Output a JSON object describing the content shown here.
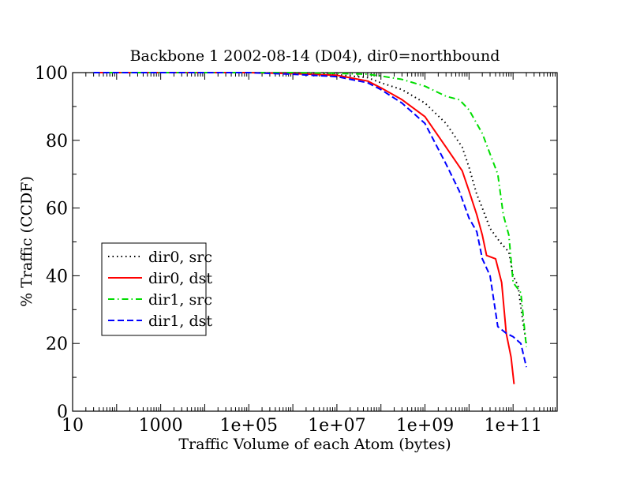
{
  "chart_data": {
    "type": "line",
    "title": "Backbone 1 2002-08-14 (D04), dir0=northbound",
    "xlabel": "Traffic Volume of each Atom (bytes)",
    "ylabel": "% Traffic (CCDF)",
    "x_scale": "log",
    "xlim": [
      10,
      1000000000000
    ],
    "ylim": [
      0,
      100
    ],
    "x_ticks": [
      {
        "value": 10,
        "label": "10"
      },
      {
        "value": 1000,
        "label": "1000"
      },
      {
        "value": 100000,
        "label": "1e+05"
      },
      {
        "value": 10000000,
        "label": "1e+07"
      },
      {
        "value": 1000000000,
        "label": "1e+09"
      },
      {
        "value": 100000000000,
        "label": "1e+11"
      }
    ],
    "y_ticks": [
      {
        "value": 0,
        "label": "0"
      },
      {
        "value": 20,
        "label": "20"
      },
      {
        "value": 40,
        "label": "40"
      },
      {
        "value": 60,
        "label": "60"
      },
      {
        "value": 80,
        "label": "80"
      },
      {
        "value": 100,
        "label": "100"
      }
    ],
    "grid": false,
    "legend_position": "middle-left",
    "series": [
      {
        "name": "dir0, src",
        "color": "#000000",
        "dash": "dotted",
        "x": [
          30,
          1000,
          100000,
          1000000,
          10000000,
          50000000,
          100000000,
          300000000,
          1000000000,
          3000000000,
          7000000000,
          10000000000,
          15000000000,
          20000000000,
          30000000000,
          50000000000,
          80000000000,
          100000000000,
          130000000000,
          160000000000,
          200000000000
        ],
        "y": [
          100,
          100,
          100,
          99.8,
          99.4,
          98.5,
          97,
          95,
          91,
          85,
          78,
          72,
          64,
          60,
          54,
          50,
          47,
          40,
          37,
          28,
          20
        ]
      },
      {
        "name": "dir0, dst",
        "color": "#ff0000",
        "dash": "solid",
        "x": [
          30,
          1000,
          100000,
          1000000,
          10000000,
          50000000,
          100000000,
          300000000,
          1000000000,
          3000000000,
          7000000000,
          10000000000,
          15000000000,
          20000000000,
          25000000000,
          40000000000,
          55000000000,
          70000000000,
          90000000000,
          105000000000
        ],
        "y": [
          100,
          100,
          100,
          99.7,
          99.2,
          97.5,
          95.5,
          92,
          87,
          78,
          71,
          65,
          58,
          52,
          46,
          45,
          38,
          23,
          16,
          8
        ]
      },
      {
        "name": "dir1, src",
        "color": "#00dd00",
        "dash": "dashdot",
        "x": [
          30,
          1000,
          100000,
          1000000,
          10000000,
          50000000,
          100000000,
          300000000,
          1000000000,
          3000000000,
          6000000000,
          10000000000,
          20000000000,
          30000000000,
          45000000000,
          60000000000,
          80000000000,
          100000000000,
          150000000000,
          200000000000
        ],
        "y": [
          100,
          100,
          100,
          100,
          99.8,
          99.5,
          99,
          98,
          96,
          93,
          92,
          89,
          82,
          76,
          70,
          58,
          52,
          38,
          35,
          19
        ]
      },
      {
        "name": "dir1, dst",
        "color": "#0000ff",
        "dash": "dashed",
        "x": [
          30,
          1000,
          100000,
          1000000,
          10000000,
          50000000,
          100000000,
          300000000,
          1000000000,
          3000000000,
          6000000000,
          10000000000,
          15000000000,
          20000000000,
          30000000000,
          45000000000,
          70000000000,
          100000000000,
          150000000000,
          200000000000
        ],
        "y": [
          100,
          100,
          100,
          99.5,
          98.8,
          97,
          95,
          91,
          85,
          73,
          65,
          57,
          53,
          45,
          40,
          25,
          23,
          22,
          20,
          13
        ]
      }
    ]
  }
}
